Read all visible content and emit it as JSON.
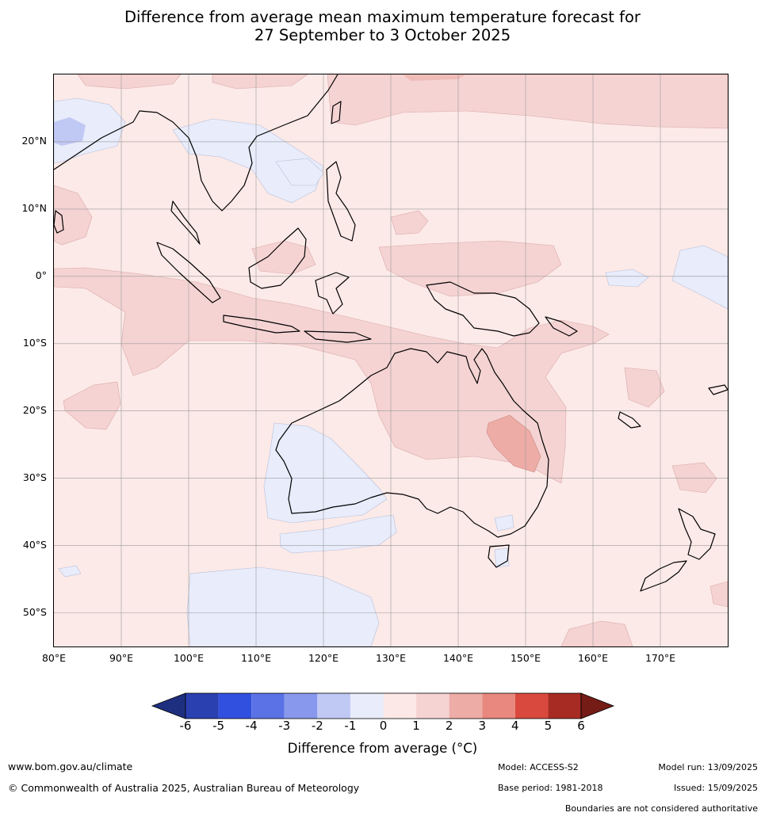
{
  "title_line1": "Difference from average mean maximum temperature forecast for",
  "title_line2": "27 September to 3 October 2025",
  "lat_labels": [
    "20°N",
    "10°N",
    "0°",
    "10°S",
    "20°S",
    "30°S",
    "40°S",
    "50°S"
  ],
  "lon_labels": [
    "80°E",
    "90°E",
    "100°E",
    "110°E",
    "120°E",
    "130°E",
    "140°E",
    "150°E",
    "160°E",
    "170°E"
  ],
  "map_extent": {
    "lon_min": 80,
    "lon_max": 180,
    "lat_min": -55,
    "lat_max": 30
  },
  "colorbar": {
    "ticks": [
      "-6",
      "-5",
      "-4",
      "-3",
      "-2",
      "-1",
      "0",
      "1",
      "2",
      "3",
      "4",
      "5",
      "6"
    ],
    "colors": [
      "#1f2f80",
      "#2a40b0",
      "#3250e0",
      "#5b72e6",
      "#8898ec",
      "#c0c8f4",
      "#e8ecfb",
      "#fce9e7",
      "#f5d3d3",
      "#eeaca6",
      "#e8887e",
      "#d9493d",
      "#a72b22",
      "#751c16"
    ],
    "label": "Difference from average (°C)"
  },
  "footer": {
    "website": "www.bom.gov.au/climate",
    "copyright": "© Commonwealth of Australia 2025, Australian Bureau of Meteorology",
    "model": "Model: ACCESS-S2",
    "model_run": "Model run: 13/09/2025",
    "base_period": "Base period: 1981-2018",
    "issued": "Issued: 15/09/2025",
    "disclaimer": "Boundaries are not considered authoritative"
  }
}
